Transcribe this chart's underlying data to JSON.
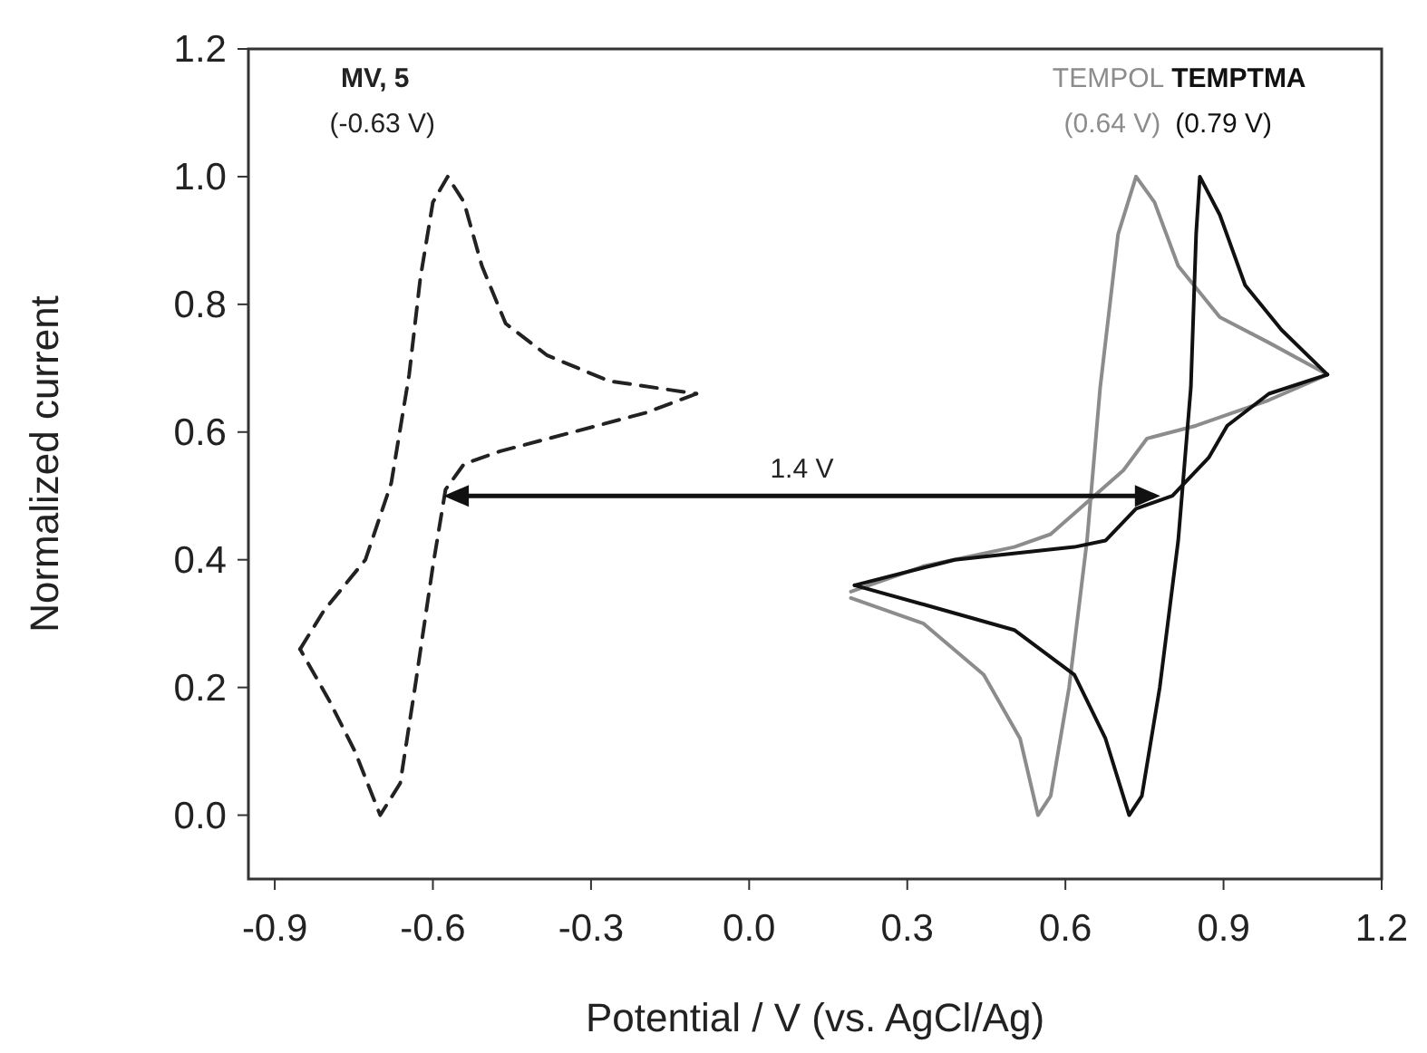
{
  "chart_data": {
    "type": "line",
    "xlabel": "Potential / V (vs. AgCl/Ag)",
    "ylabel": "Normalized current",
    "xlim": [
      -0.95,
      1.2
    ],
    "ylim": [
      -0.1,
      1.2
    ],
    "xticks": [
      {
        "value": -0.9,
        "label": "-0.9"
      },
      {
        "value": -0.6,
        "label": "-0.6"
      },
      {
        "value": -0.3,
        "label": "-0.3"
      },
      {
        "value": 0,
        "label": "0.0"
      },
      {
        "value": 0.3,
        "label": "0.3"
      },
      {
        "value": 0.6,
        "label": "0.6"
      },
      {
        "value": 0.9,
        "label": "0.9"
      },
      {
        "value": 1.2,
        "label": "1.2"
      }
    ],
    "yticks": [
      {
        "value": 0,
        "label": "0.0"
      },
      {
        "value": 0.2,
        "label": "0.2"
      },
      {
        "value": 0.4,
        "label": "0.4"
      },
      {
        "value": 0.6,
        "label": "0.6"
      },
      {
        "value": 0.8,
        "label": "0.8"
      },
      {
        "value": 1,
        "label": "1.0"
      },
      {
        "value": 1.2,
        "label": "1.2"
      }
    ],
    "grid": false,
    "legend": false,
    "marker": "none",
    "series": [
      {
        "name": "MV, 5",
        "color": "#222222",
        "line_style": "dashed",
        "x": [
          -0.852,
          -0.807,
          -0.728,
          -0.679,
          -0.645,
          -0.624,
          -0.6,
          -0.572,
          -0.541,
          -0.507,
          -0.462,
          -0.383,
          -0.266,
          -0.1
        ],
        "values": [
          0.26,
          0.32,
          0.4,
          0.52,
          0.69,
          0.84,
          0.96,
          1.0,
          0.96,
          0.86,
          0.77,
          0.72,
          0.68,
          0.66
        ]
      },
      {
        "color": "#222222",
        "line_style": "dashed",
        "x": [
          -0.1,
          -0.197,
          -0.334,
          -0.472,
          -0.541,
          -0.576,
          -0.6,
          -0.634,
          -0.662,
          -0.7,
          -0.748,
          -0.797,
          -0.852
        ],
        "values": [
          0.66,
          0.63,
          0.6,
          0.57,
          0.55,
          0.51,
          0.39,
          0.2,
          0.05,
          0.0,
          0.1,
          0.18,
          0.26
        ]
      },
      {
        "name": "TEMPOL",
        "color": "#8c8c8c",
        "line_style": "solid",
        "x": [
          0.193,
          0.331,
          0.445,
          0.514,
          0.548,
          0.572,
          0.607,
          0.641,
          0.666,
          0.7,
          0.734,
          0.769,
          0.814,
          0.893,
          0.986,
          1.097
        ],
        "values": [
          0.34,
          0.3,
          0.22,
          0.12,
          0.0,
          0.03,
          0.2,
          0.43,
          0.67,
          0.91,
          1.0,
          0.96,
          0.86,
          0.78,
          0.74,
          0.69
        ]
      },
      {
        "color": "#8c8c8c",
        "line_style": "solid",
        "x": [
          1.097,
          0.986,
          0.848,
          0.755,
          0.71,
          0.572,
          0.503,
          0.331,
          0.193
        ],
        "values": [
          0.69,
          0.65,
          0.61,
          0.59,
          0.54,
          0.44,
          0.42,
          0.39,
          0.35
        ]
      },
      {
        "name": "TEMPTMA",
        "color": "#111111",
        "line_style": "solid",
        "x": [
          0.2,
          0.331,
          0.503,
          0.617,
          0.676,
          0.721,
          0.745,
          0.779,
          0.814,
          0.838,
          0.848,
          0.855,
          0.893,
          0.941,
          1.01,
          1.097
        ],
        "values": [
          0.36,
          0.33,
          0.29,
          0.22,
          0.12,
          0.0,
          0.03,
          0.2,
          0.43,
          0.67,
          0.91,
          1.0,
          0.94,
          0.83,
          0.76,
          0.69
        ]
      },
      {
        "color": "#111111",
        "line_style": "solid",
        "x": [
          1.097,
          0.986,
          0.907,
          0.872,
          0.803,
          0.734,
          0.676,
          0.617,
          0.39,
          0.2
        ],
        "values": [
          0.69,
          0.66,
          0.61,
          0.56,
          0.5,
          0.48,
          0.43,
          0.42,
          0.4,
          0.36
        ]
      }
    ],
    "annotations": [
      "(-0.63 V)",
      "(0.64 V)",
      "(0.79 V)",
      "1.4 V"
    ]
  }
}
